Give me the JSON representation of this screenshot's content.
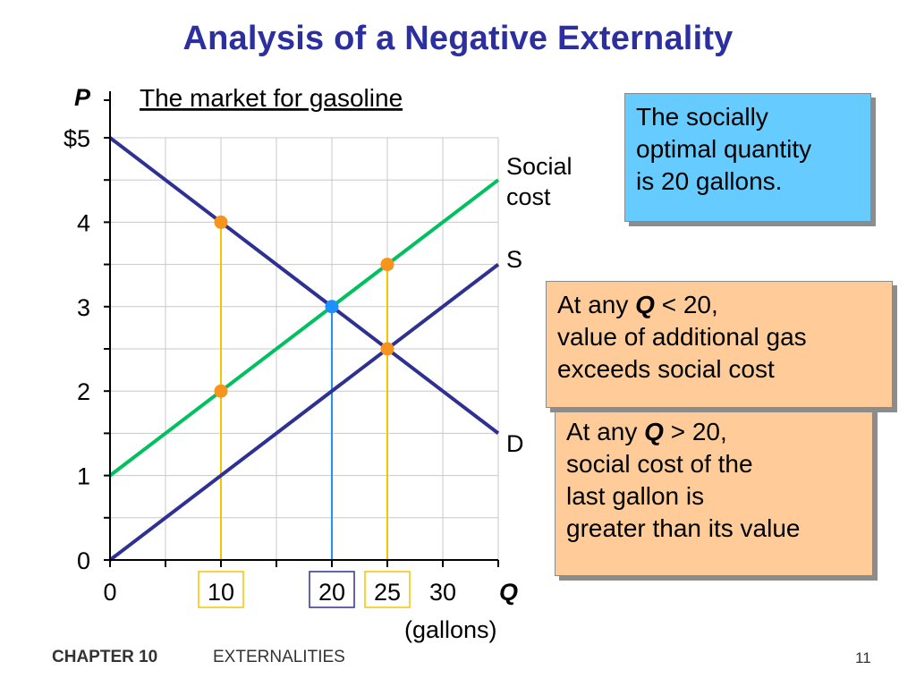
{
  "slide": {
    "title": "Analysis of a Negative Externality",
    "chart_title": "The market for gasoline"
  },
  "chart_data": {
    "type": "line",
    "title": "The market for gasoline",
    "ylabel": "P",
    "xlabel": "Q",
    "xlabel_unit": "(gallons)",
    "xlim": [
      0,
      35
    ],
    "ylim": [
      0,
      5
    ],
    "grid": true,
    "y_ticks": [
      {
        "value": 0,
        "label": "0"
      },
      {
        "value": 1,
        "label": "1"
      },
      {
        "value": 2,
        "label": "2"
      },
      {
        "value": 3,
        "label": "3"
      },
      {
        "value": 4,
        "label": "4"
      },
      {
        "value": 5,
        "label": "$5"
      }
    ],
    "x_ticks": [
      {
        "value": 0,
        "label": "0",
        "boxed": false
      },
      {
        "value": 10,
        "label": "10",
        "boxed": true
      },
      {
        "value": 20,
        "label": "20",
        "boxed": true
      },
      {
        "value": 25,
        "label": "25",
        "boxed": true
      },
      {
        "value": 30,
        "label": "30",
        "boxed": false
      }
    ],
    "series": [
      {
        "name": "D",
        "color": "#2e3192",
        "x": [
          0,
          35
        ],
        "y": [
          5,
          1.5
        ]
      },
      {
        "name": "S",
        "color": "#2e3192",
        "x": [
          0,
          35
        ],
        "y": [
          0,
          3.5
        ]
      },
      {
        "name": "Social cost",
        "color": "#00c060",
        "x": [
          0,
          35
        ],
        "y": [
          1,
          4.5
        ]
      }
    ],
    "points": [
      {
        "x": 10,
        "y": 4,
        "color": "#f7941d",
        "guide_color": "#f5c400"
      },
      {
        "x": 10,
        "y": 2,
        "color": "#f7941d",
        "guide_color": "#f5c400"
      },
      {
        "x": 20,
        "y": 3,
        "color": "#1e90ff",
        "guide_color": "#1e90ff"
      },
      {
        "x": 25,
        "y": 3.5,
        "color": "#f7941d",
        "guide_color": "#f5c400"
      },
      {
        "x": 25,
        "y": 2.5,
        "color": "#f7941d",
        "guide_color": "#f5c400"
      }
    ],
    "box_colors": {
      "10": "#f5c400",
      "20": "#2e3192",
      "25": "#f5c400"
    }
  },
  "callouts": {
    "optimal": {
      "line1": "The socially",
      "line2": "optimal quantity",
      "line3": "is 20 gallons."
    },
    "less_than": {
      "line1_pre": "At any ",
      "line1_q": "Q",
      "line1_post": " < 20,",
      "line2": "value of additional gas",
      "line3": "exceeds social cost"
    },
    "greater_than": {
      "line1_pre": "At any ",
      "line1_q": "Q",
      "line1_post": " > 20,",
      "line2": "social cost of the",
      "line3": "last gallon is",
      "line4": "greater than its value"
    }
  },
  "footer": {
    "chapter": "CHAPTER 10",
    "topic": "EXTERNALITIES",
    "page": "11"
  }
}
